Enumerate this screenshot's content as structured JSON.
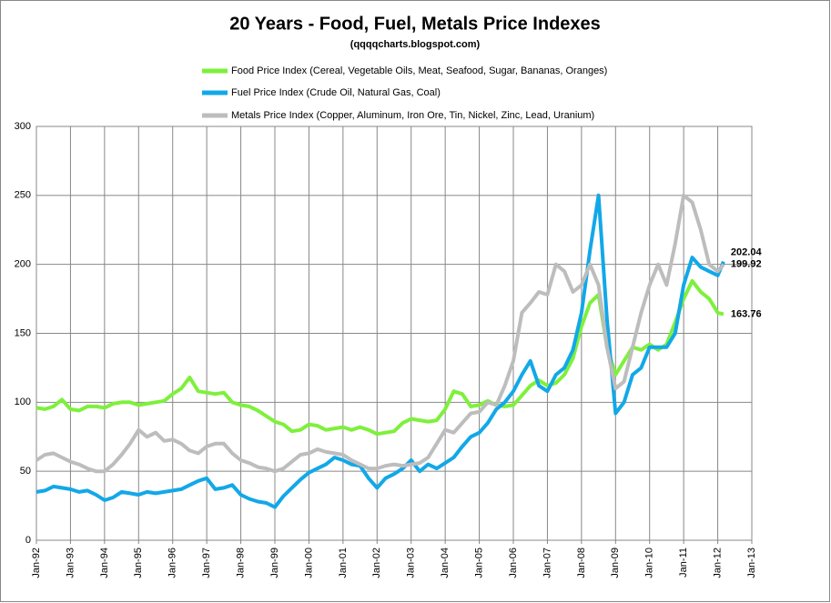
{
  "chart_data": {
    "type": "line",
    "title": "20 Years - Food,  Fuel,  Metals  Price  Indexes",
    "subtitle": "(qqqqcharts.blogspot.com)",
    "grid": true,
    "x": [
      1992,
      1992.25,
      1992.5,
      1992.75,
      1993,
      1993.25,
      1993.5,
      1993.75,
      1994,
      1994.25,
      1994.5,
      1994.75,
      1995,
      1995.25,
      1995.5,
      1995.75,
      1996,
      1996.25,
      1996.5,
      1996.75,
      1997,
      1997.25,
      1997.5,
      1997.75,
      1998,
      1998.25,
      1998.5,
      1998.75,
      1999,
      1999.25,
      1999.5,
      1999.75,
      2000,
      2000.25,
      2000.5,
      2000.75,
      2001,
      2001.25,
      2001.5,
      2001.75,
      2002,
      2002.25,
      2002.5,
      2002.75,
      2003,
      2003.25,
      2003.5,
      2003.75,
      2004,
      2004.25,
      2004.5,
      2004.75,
      2005,
      2005.25,
      2005.5,
      2005.75,
      2006,
      2006.25,
      2006.5,
      2006.75,
      2007,
      2007.25,
      2007.5,
      2007.75,
      2008,
      2008.25,
      2008.5,
      2008.75,
      2009,
      2009.25,
      2009.5,
      2009.75,
      2010,
      2010.25,
      2010.5,
      2010.75,
      2011,
      2011.25,
      2011.5,
      2011.75,
      2012,
      2012.17
    ],
    "xlim": [
      1992,
      2013
    ],
    "xticks": [
      {
        "value": 1992,
        "label": "Jan-92"
      },
      {
        "value": 1993,
        "label": "Jan-93"
      },
      {
        "value": 1994,
        "label": "Jan-94"
      },
      {
        "value": 1995,
        "label": "Jan-95"
      },
      {
        "value": 1996,
        "label": "Jan-96"
      },
      {
        "value": 1997,
        "label": "Jan-97"
      },
      {
        "value": 1998,
        "label": "Jan-98"
      },
      {
        "value": 1999,
        "label": "Jan-99"
      },
      {
        "value": 2000,
        "label": "Jan-00"
      },
      {
        "value": 2001,
        "label": "Jan-01"
      },
      {
        "value": 2002,
        "label": "Jan-02"
      },
      {
        "value": 2003,
        "label": "Jan-03"
      },
      {
        "value": 2004,
        "label": "Jan-04"
      },
      {
        "value": 2005,
        "label": "Jan-05"
      },
      {
        "value": 2006,
        "label": "Jan-06"
      },
      {
        "value": 2007,
        "label": "Jan-07"
      },
      {
        "value": 2008,
        "label": "Jan-08"
      },
      {
        "value": 2009,
        "label": "Jan-09"
      },
      {
        "value": 2010,
        "label": "Jan-10"
      },
      {
        "value": 2011,
        "label": "Jan-11"
      },
      {
        "value": 2012,
        "label": "Jan-12"
      },
      {
        "value": 2013,
        "label": "Jan-13"
      }
    ],
    "ylim": [
      0,
      300
    ],
    "yticks": [
      0,
      50,
      100,
      150,
      200,
      250,
      300
    ],
    "series": [
      {
        "name": "Food Price Index (Cereal, Vegetable Oils, Meat, Seafood, Sugar, Bananas, Oranges)",
        "color": "#7ef03c",
        "values": [
          96,
          95,
          97,
          102,
          95,
          94,
          97,
          97,
          96,
          99,
          100,
          100,
          98,
          99,
          100,
          101,
          106,
          110,
          118,
          108,
          107,
          106,
          107,
          100,
          98,
          97,
          94,
          90,
          86,
          84,
          79,
          80,
          84,
          83,
          80,
          81,
          82,
          80,
          82,
          80,
          77,
          78,
          79,
          85,
          88,
          87,
          86,
          87,
          95,
          108,
          106,
          97,
          98,
          101,
          98,
          97,
          98,
          105,
          112,
          116,
          112,
          114,
          120,
          132,
          155,
          172,
          178,
          140,
          120,
          130,
          140,
          138,
          142,
          138,
          142,
          158,
          175,
          188,
          180,
          175,
          165,
          163.76
        ]
      },
      {
        "name": "Fuel Price Index (Crude Oil, Natural  Gas, Coal)",
        "color": "#12a8e8",
        "values": [
          35,
          36,
          39,
          38,
          37,
          35,
          36,
          33,
          29,
          31,
          35,
          34,
          33,
          35,
          34,
          35,
          36,
          37,
          40,
          43,
          45,
          37,
          38,
          40,
          33,
          30,
          28,
          27,
          24,
          32,
          38,
          44,
          49,
          52,
          55,
          60,
          58,
          55,
          54,
          45,
          38,
          45,
          48,
          52,
          58,
          50,
          55,
          52,
          56,
          60,
          68,
          75,
          78,
          85,
          95,
          100,
          108,
          120,
          130,
          112,
          108,
          120,
          125,
          138,
          165,
          210,
          250,
          160,
          92,
          100,
          120,
          125,
          140,
          140,
          140,
          150,
          185,
          205,
          198,
          195,
          192,
          202.04
        ]
      },
      {
        "name": "Metals Price Index (Copper, Aluminum, Iron Ore, Tin, Nickel, Zinc, Lead, Uranium)",
        "color": "#bdbdbd",
        "values": [
          58,
          62,
          63,
          60,
          57,
          55,
          52,
          50,
          50,
          55,
          62,
          70,
          80,
          75,
          78,
          72,
          73,
          70,
          65,
          63,
          68,
          70,
          70,
          63,
          58,
          56,
          53,
          52,
          50,
          52,
          57,
          62,
          63,
          66,
          64,
          63,
          62,
          58,
          55,
          52,
          52,
          54,
          55,
          54,
          55,
          56,
          60,
          70,
          80,
          78,
          85,
          92,
          93,
          100,
          98,
          112,
          130,
          165,
          172,
          180,
          178,
          200,
          195,
          180,
          185,
          200,
          185,
          140,
          110,
          115,
          140,
          165,
          185,
          200,
          185,
          215,
          250,
          245,
          225,
          200,
          195,
          199.92
        ]
      }
    ]
  }
}
